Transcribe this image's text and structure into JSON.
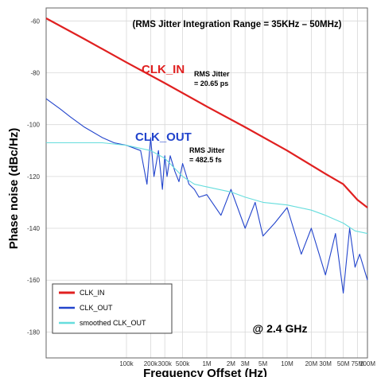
{
  "chart_data": {
    "type": "line",
    "title": "(RMS Jitter Integration Range = 35KHz – 50MHz)",
    "xlabel": "Frequency Offset (Hz)",
    "ylabel": "Phase noise (dBc/Hz)",
    "x_scale": "log",
    "xlim": [
      10000,
      100000000
    ],
    "ylim": [
      -190,
      -55
    ],
    "grid": true,
    "legend_position": "bottom-left",
    "y_ticks": [
      -60,
      -80,
      -100,
      -120,
      -140,
      -160,
      -180
    ],
    "x_ticks": [
      {
        "value": 100000,
        "label": "100k"
      },
      {
        "value": 200000,
        "label": "200k"
      },
      {
        "value": 300000,
        "label": "300k"
      },
      {
        "value": 500000,
        "label": "500k"
      },
      {
        "value": 1000000,
        "label": "1M"
      },
      {
        "value": 2000000,
        "label": "2M"
      },
      {
        "value": 3000000,
        "label": "3M"
      },
      {
        "value": 5000000,
        "label": "5M"
      },
      {
        "value": 10000000,
        "label": "10M"
      },
      {
        "value": 20000000,
        "label": "20M"
      },
      {
        "value": 30000000,
        "label": "30M"
      },
      {
        "value": 50000000,
        "label": "50M"
      },
      {
        "value": 75000000,
        "label": "75M"
      },
      {
        "value": 100000000,
        "label": "100M"
      }
    ],
    "series": [
      {
        "name": "CLK_IN",
        "color": "#e02020",
        "x": [
          10000,
          30000,
          100000,
          300000,
          1000000,
          3000000,
          10000000,
          30000000,
          50000000,
          75000000,
          100000000
        ],
        "y": [
          -59,
          -67,
          -76,
          -84,
          -93,
          -101,
          -110,
          -119,
          -123,
          -129,
          -132
        ]
      },
      {
        "name": "CLK_OUT",
        "color": "#2244cc",
        "x": [
          10000,
          15000,
          20000,
          30000,
          50000,
          70000,
          100000,
          150000,
          180000,
          200000,
          220000,
          250000,
          280000,
          300000,
          320000,
          350000,
          400000,
          450000,
          500000,
          600000,
          700000,
          800000,
          1000000,
          1500000,
          2000000,
          3000000,
          4000000,
          5000000,
          7000000,
          10000000,
          15000000,
          20000000,
          30000000,
          40000000,
          50000000,
          60000000,
          70000000,
          80000000,
          100000000
        ],
        "y": [
          -90,
          -94,
          -97,
          -101,
          -105,
          -107,
          -108,
          -110,
          -123,
          -105,
          -120,
          -110,
          -125,
          -112,
          -120,
          -112,
          -118,
          -122,
          -115,
          -123,
          -125,
          -128,
          -127,
          -135,
          -125,
          -140,
          -130,
          -143,
          -138,
          -132,
          -150,
          -140,
          -158,
          -142,
          -165,
          -140,
          -155,
          -150,
          -160
        ]
      },
      {
        "name": "smoothed CLK_OUT",
        "color": "#66dddd",
        "x": [
          10000,
          50000,
          100000,
          200000,
          300000,
          500000,
          700000,
          1000000,
          2000000,
          3000000,
          5000000,
          10000000,
          20000000,
          30000000,
          50000000,
          70000000,
          100000000
        ],
        "y": [
          -107,
          -107,
          -108,
          -110,
          -113,
          -120,
          -123,
          -124,
          -126,
          -128,
          -130,
          -131,
          -133,
          -135,
          -138,
          -141,
          -142
        ]
      }
    ],
    "annotations": [
      {
        "text": "CLK_IN",
        "color": "#e02020"
      },
      {
        "text": "RMS Jitter",
        "color": "#000000"
      },
      {
        "text": "= 20.65 ps",
        "color": "#000000"
      },
      {
        "text": "CLK_OUT",
        "color": "#2244cc"
      },
      {
        "text": "RMS Jitter",
        "color": "#000000"
      },
      {
        "text": "= 482.5 fs",
        "color": "#000000"
      },
      {
        "text": "@ 2.4 GHz",
        "color": "#000000"
      }
    ]
  }
}
